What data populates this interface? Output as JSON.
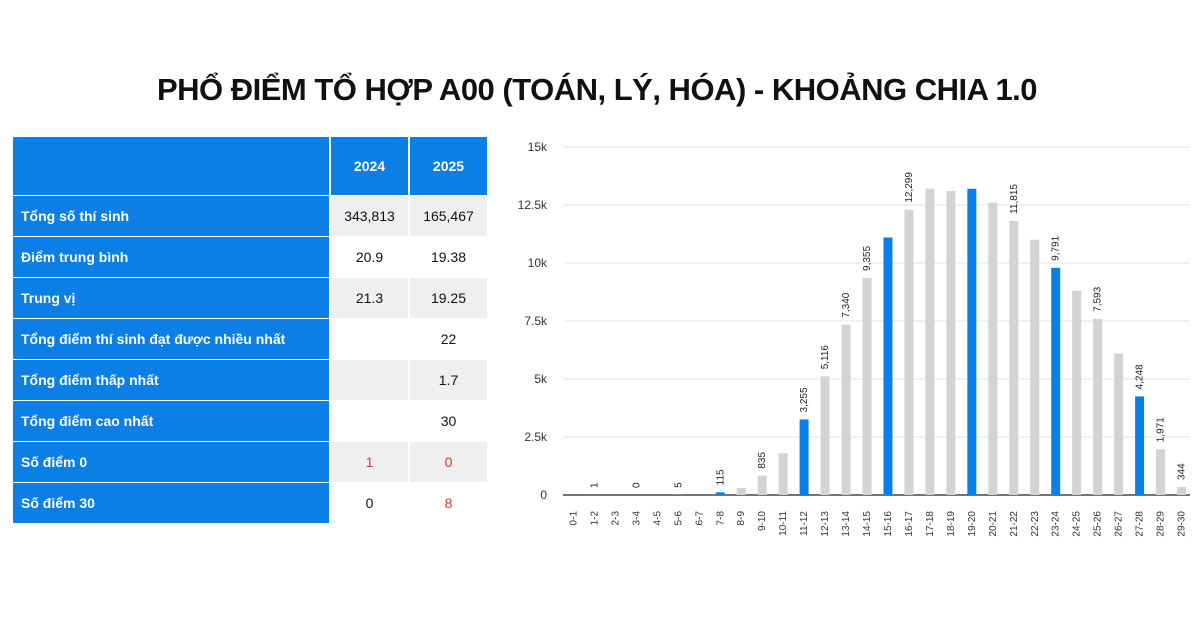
{
  "title": "PHỔ ĐIỂM TỔ HỢP A00 (TOÁN, LÝ, HÓA) - KHOẢNG CHIA 1.0",
  "table": {
    "header": {
      "label": "",
      "y2024": "2024",
      "y2025": "2025"
    },
    "rows": [
      {
        "label": "Tổng số thí sinh",
        "y2024": "343,813",
        "y2025": "165,467"
      },
      {
        "label": "Điểm trung bình",
        "y2024": "20.9",
        "y2025": "19.38"
      },
      {
        "label": "Trung vị",
        "y2024": "21.3",
        "y2025": "19.25"
      },
      {
        "label": "Tổng điểm thí sinh đạt được nhiều nhất",
        "y2024": "",
        "y2025": "22"
      },
      {
        "label": "Tổng điểm thấp nhất",
        "y2024": "",
        "y2025": "1.7"
      },
      {
        "label": "Tổng điểm cao nhất",
        "y2024": "",
        "y2025": "30"
      },
      {
        "label": "Số điểm 0",
        "y2024": "1",
        "y2025": "0"
      },
      {
        "label": "Số điểm 30",
        "y2024": "0",
        "y2025": "8"
      }
    ]
  },
  "colors": {
    "accent": "#0b7fe6",
    "bar_gray": "#d3d3d3",
    "red": "#d23b2a"
  },
  "chart_data": {
    "type": "bar",
    "categories": [
      "0-1",
      "1-2",
      "2-3",
      "3-4",
      "4-5",
      "5-6",
      "6-7",
      "7-8",
      "8-9",
      "9-10",
      "10-11",
      "11-12",
      "12-13",
      "13-14",
      "14-15",
      "15-16",
      "16-17",
      "17-18",
      "18-19",
      "19-20",
      "20-21",
      "21-22",
      "22-23",
      "23-24",
      "24-25",
      "25-26",
      "26-27",
      "27-28",
      "28-29",
      "29-30"
    ],
    "values": [
      0,
      1,
      0,
      0,
      0,
      5,
      0,
      115,
      300,
      835,
      1800,
      3255,
      5116,
      7340,
      9355,
      11100,
      12299,
      13200,
      13100,
      13200,
      12600,
      11815,
      11000,
      9791,
      8800,
      7593,
      6100,
      4248,
      1971,
      344
    ],
    "data_labels": [
      "",
      "1",
      "",
      "0",
      "",
      "5",
      "",
      "115",
      "",
      "835",
      "",
      "3,255",
      "5,116",
      "7,340",
      "9,355",
      "",
      "12,299",
      "",
      "",
      "",
      "",
      "11,815",
      "",
      "9,791",
      "",
      "7,593",
      "",
      "4,248",
      "1,971",
      "344"
    ],
    "highlighted": [
      "7-8",
      "11-12",
      "15-16",
      "19-20",
      "23-24",
      "27-28"
    ],
    "yticks": [
      "0",
      "2.5k",
      "5k",
      "7.5k",
      "10k",
      "12.5k",
      "15k"
    ],
    "ylim": [
      0,
      15000
    ],
    "grid": true
  }
}
